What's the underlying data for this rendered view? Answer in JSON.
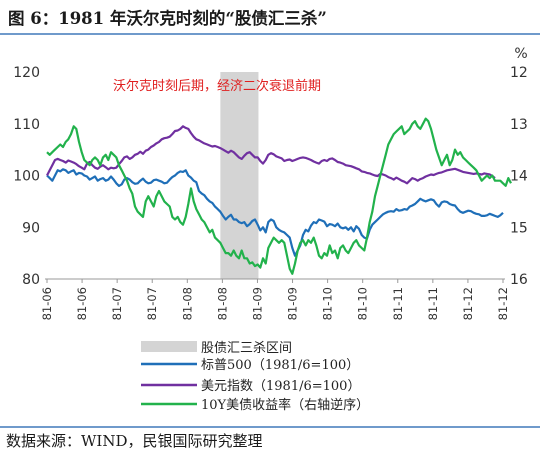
{
  "title": "图 6：1981 年沃尔克时刻的“股债汇三杀”",
  "source": "数据来源：WIND，民银国际研究整理",
  "chart_data": {
    "type": "line",
    "annotation": "沃尔克时刻后期，经济二次衰退前期",
    "shaded_period": {
      "label": "股债汇三杀区间",
      "x_start": "81-08",
      "x_end": "81-09",
      "color": "#d4d4d4"
    },
    "x_ticks": [
      "81-06",
      "81-06",
      "81-07",
      "81-07",
      "81-08",
      "81-08",
      "81-09",
      "81-09",
      "81-10",
      "81-10",
      "81-11",
      "81-11",
      "81-12",
      "81-12"
    ],
    "y_left": {
      "ticks": [
        "120",
        "110",
        "100",
        "90",
        "80"
      ],
      "min": 80,
      "max": 120
    },
    "y_right": {
      "unit": "%",
      "ticks": [
        "12",
        "13",
        "14",
        "15",
        "16"
      ],
      "min": 12,
      "max": 16,
      "reversed": true
    },
    "grid": false,
    "legend_position": "bottom",
    "series": [
      {
        "name": "标普500（1981/6=100）",
        "axis": "left",
        "color": "#1f6fb8",
        "values": [
          100,
          99.5,
          99,
          100,
          101,
          100.8,
          101.2,
          101,
          100.5,
          100.8,
          101,
          100.2,
          100.5,
          100.4,
          100,
          99.8,
          99.2,
          99.5,
          99.8,
          99,
          99.3,
          99.5,
          99,
          99.2,
          99.8,
          99.2,
          98.5,
          98,
          98.3,
          99.2,
          99.5,
          99.2,
          98.7,
          98.4,
          98.5,
          99,
          99.4,
          98.8,
          98.5,
          98.6,
          99.1,
          99.2,
          99,
          98.8,
          98.5,
          98.6,
          99.2,
          99.7,
          100,
          100.5,
          100.8,
          100.7,
          101,
          100,
          99.6,
          99,
          98.7,
          97,
          96.5,
          96.2,
          95.5,
          95,
          94.7,
          94,
          93.5,
          93,
          92.2,
          91.5,
          92,
          92.4,
          91.5,
          91.5,
          91,
          90.8,
          91,
          90.2,
          90.6,
          91.2,
          91.5,
          90.5,
          89.4,
          90,
          89,
          91,
          91.5,
          91.2,
          90,
          89.5,
          89.2,
          89,
          88.5,
          88,
          86,
          84.5,
          85.5,
          86.5,
          88.5,
          89.5,
          89.2,
          90.3,
          91,
          90.8,
          91.5,
          91.3,
          91.1,
          90.2,
          90.6,
          90.5,
          90.2,
          90.7,
          90,
          89.8,
          90,
          89.5,
          90,
          89.2,
          90.2,
          89.7,
          88.5,
          88,
          87.8,
          89.5,
          90.5,
          91,
          91.5,
          92,
          92.5,
          92.8,
          93,
          93.1,
          93,
          93.5,
          93.2,
          93.3,
          93.5,
          93.4,
          94,
          94.2,
          94.5,
          95,
          95.5,
          95.2,
          95,
          95.2,
          95.4,
          95.2,
          94.5,
          94,
          94.8,
          95,
          94.9,
          94.5,
          94.3,
          94.2,
          93.5,
          93,
          92.8,
          93,
          93.2,
          93.1,
          92.8,
          92.6,
          92.5,
          92.2,
          92.2,
          92.3,
          92.6,
          92.4,
          92.2,
          92,
          92.3,
          92.8
        ]
      },
      {
        "name": "美元指数（1981/6=100）",
        "axis": "left",
        "color": "#7030a0",
        "values": [
          100,
          101,
          102,
          103,
          103.2,
          103,
          102.8,
          102.5,
          102.9,
          102.7,
          102.5,
          102.2,
          101.8,
          101.5,
          101.2,
          102.3,
          102.6,
          102,
          101.5,
          101.3,
          101.7,
          102,
          101.6,
          101.2,
          101.5,
          101.4,
          101.5,
          102.2,
          102.8,
          103.5,
          103.7,
          103.2,
          103.5,
          104,
          104.2,
          104.6,
          104.2,
          104.8,
          105,
          105.5,
          105.8,
          106.2,
          106.5,
          107,
          107.2,
          107.3,
          107.5,
          108,
          108.6,
          108.7,
          109,
          109.5,
          109.2,
          109,
          108.2,
          107.5,
          107,
          106.8,
          106.5,
          106.2,
          106,
          105.8,
          105.6,
          105.7,
          105.5,
          105.3,
          105,
          104.7,
          104.4,
          104.8,
          104.5,
          104,
          103.5,
          103.2,
          103.8,
          104.3,
          104.5,
          104,
          103.5,
          103.5,
          102.8,
          102.3,
          103,
          104,
          104.3,
          104.1,
          103.7,
          103.5,
          103.3,
          102.8,
          103,
          103.1,
          102.8,
          103,
          103.2,
          103.4,
          103.5,
          103.4,
          103.2,
          103,
          102.7,
          102.5,
          102.3,
          102.8,
          103,
          102.8,
          103.2,
          103.3,
          103,
          102.6,
          102.5,
          102.3,
          102,
          101.9,
          101.8,
          101.6,
          101.4,
          101.2,
          100.8,
          100.7,
          100.5,
          100.4,
          100.2,
          100,
          99.9,
          100.3,
          100.2,
          100,
          99.7,
          99.5,
          99.2,
          99.6,
          99.3,
          99,
          98.8,
          98.5,
          99,
          99.5,
          99.3,
          99,
          99.3,
          99.5,
          99.8,
          100,
          100.2,
          100.1,
          100.3,
          100.5,
          100.6,
          100.8,
          101,
          101.1,
          101.2,
          101.3,
          101.1,
          100.9,
          100.7,
          100.6,
          100.5,
          100.4,
          100.3,
          100.4,
          100.3,
          100.2,
          100.4,
          100.3,
          100.2,
          99.9,
          99.5
        ]
      },
      {
        "name": "10Y美债收益率（右轴逆序）",
        "axis": "right",
        "color": "#22b24c",
        "values": [
          13.55,
          13.6,
          13.55,
          13.5,
          13.45,
          13.4,
          13.45,
          13.35,
          13.3,
          13.2,
          13.05,
          13.1,
          13.35,
          13.55,
          13.7,
          13.75,
          13.8,
          13.7,
          13.65,
          13.7,
          13.8,
          13.65,
          13.6,
          13.7,
          13.55,
          13.6,
          13.65,
          13.8,
          13.9,
          14,
          14.1,
          14.25,
          14.35,
          14.6,
          14.7,
          14.75,
          14.8,
          14.5,
          14.4,
          14.5,
          14.6,
          14.4,
          14.3,
          14.4,
          14.5,
          14.55,
          14.6,
          14.8,
          14.85,
          14.8,
          14.9,
          14.95,
          14.8,
          14.55,
          14.25,
          14.5,
          14.65,
          14.75,
          14.85,
          14.9,
          15.0,
          15.1,
          15.05,
          15.2,
          15.25,
          15.3,
          15.4,
          15.5,
          15.5,
          15.55,
          15.45,
          15.55,
          15.6,
          15.45,
          15.6,
          15.6,
          15.7,
          15.68,
          15.75,
          15.72,
          15.78,
          15.6,
          15.7,
          15.4,
          15.3,
          15.2,
          15.25,
          15.3,
          15.25,
          15.3,
          15.55,
          15.8,
          15.9,
          15.7,
          15.45,
          15.3,
          15.25,
          15.35,
          15.25,
          15.3,
          15.2,
          15.35,
          15.55,
          15.6,
          15.5,
          15.55,
          15.35,
          15.5,
          15.45,
          15.6,
          15.4,
          15.35,
          15.45,
          15.5,
          15.4,
          15.3,
          15.25,
          15.35,
          15.4,
          15.45,
          15.2,
          14.9,
          14.7,
          14.4,
          14.2,
          14.0,
          13.8,
          13.6,
          13.4,
          13.3,
          13.2,
          13.15,
          13.1,
          13.05,
          13.2,
          13.15,
          13.1,
          13.0,
          12.95,
          13.05,
          13.1,
          13.0,
          12.9,
          12.95,
          13.1,
          13.3,
          13.5,
          13.65,
          13.8,
          13.7,
          13.6,
          13.8,
          13.7,
          13.5,
          13.6,
          13.55,
          13.65,
          13.7,
          13.75,
          13.8,
          13.85,
          13.9,
          14.0,
          14.1,
          14.05,
          14.0,
          14.05,
          14.0,
          14.1,
          14.1,
          14.1,
          14.15,
          14.2,
          14.05,
          14.15
        ]
      }
    ]
  }
}
